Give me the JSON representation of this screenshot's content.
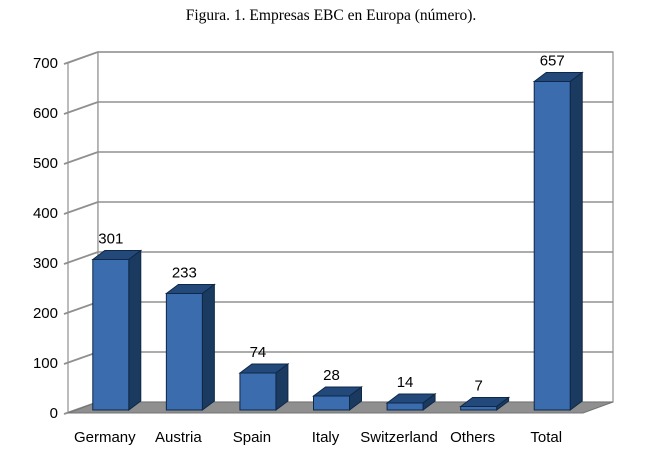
{
  "colors": {
    "background": "#FFFFFF",
    "wall": "#FFFFFF",
    "grid": "#909090",
    "floor": "#8F8F8F",
    "floor_edge": "#737373",
    "bar_front": "#3A6CAE",
    "bar_side": "#1B3A60",
    "bar_top": "#23487A",
    "bar_outline": "#0F2848",
    "text": "#000000"
  },
  "chart_data": {
    "type": "bar",
    "style": "3d-column",
    "title": "Figura. 1. Empresas EBC en Europa (número).",
    "categories": [
      "Germany",
      "Austria",
      "Spain",
      "Italy",
      "Switzerland",
      "Others",
      "Total"
    ],
    "values": [
      301,
      233,
      74,
      28,
      14,
      7,
      657
    ],
    "xlabel": "",
    "ylabel": "",
    "ylim": [
      0,
      700
    ],
    "yticks": [
      0,
      100,
      200,
      300,
      400,
      500,
      600,
      700
    ],
    "grid": true,
    "legend": "none",
    "data_labels": true
  }
}
